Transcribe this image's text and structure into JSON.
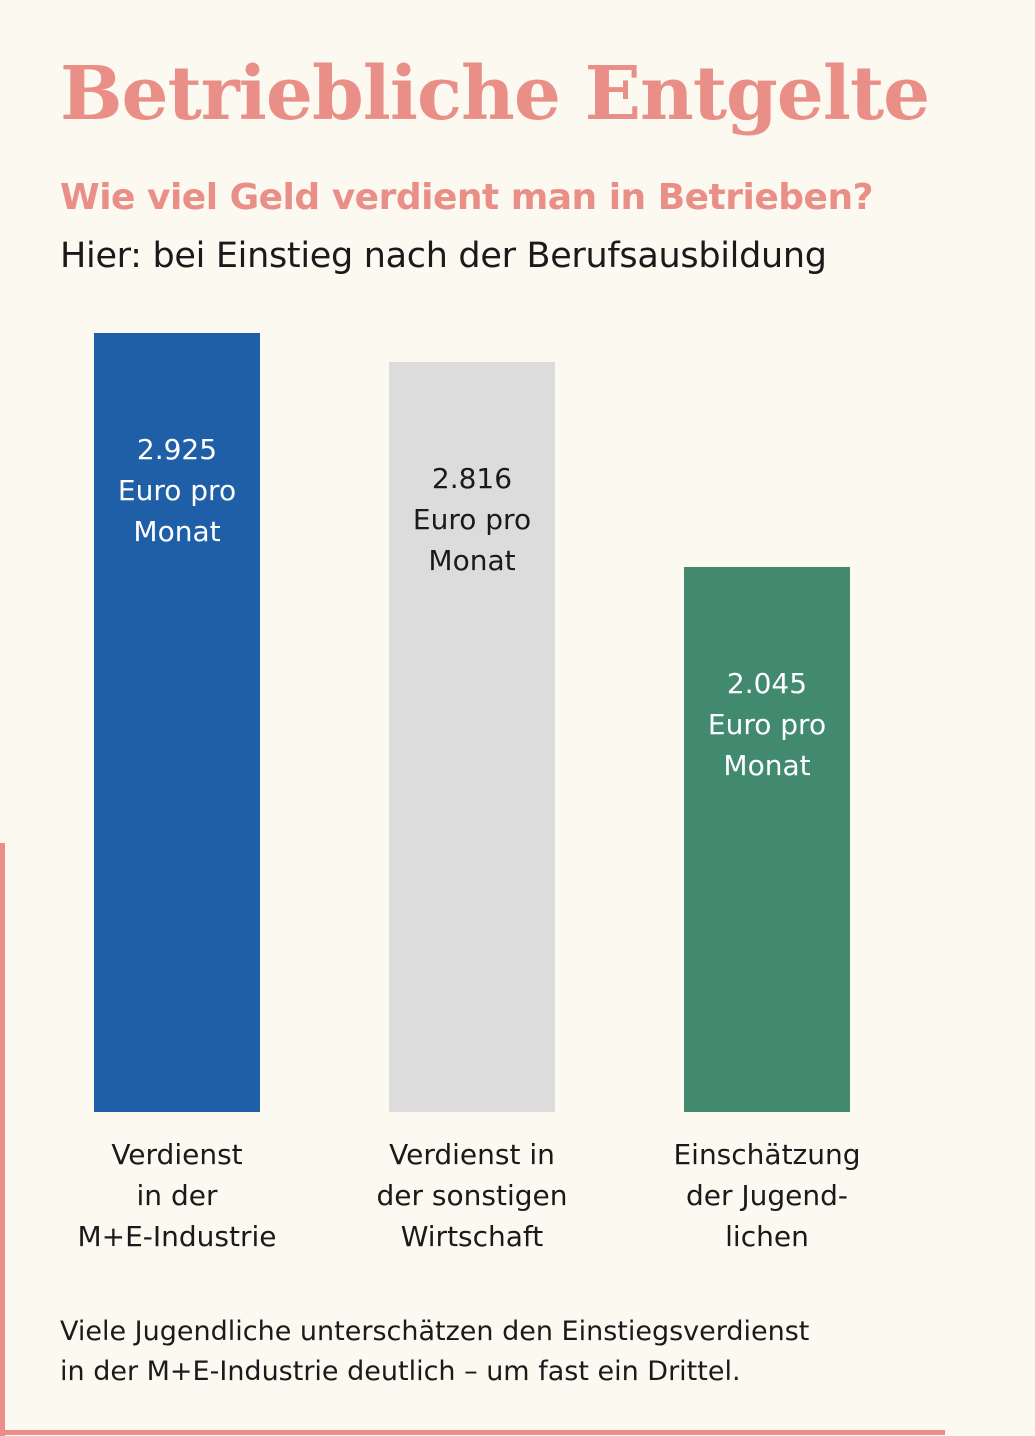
{
  "header": {
    "title": "Betriebliche Entgelte",
    "subtitle": "Wie viel Geld verdient man in Betrieben?",
    "subline": "Hier: bei Einstieg nach der Berufsausbildung"
  },
  "footnote": "Viele Jugendliche unterschätzen den Einstiegsverdienst\nin der M+E-Industrie deutlich – um fast ein Drittel.",
  "colors": {
    "accent": "#ea8e88",
    "background": "#fcf9f1"
  },
  "chart_data": {
    "type": "bar",
    "title": "Betriebliche Entgelte",
    "xlabel": "",
    "ylabel": "",
    "ylim": [
      0,
      2925
    ],
    "categories": [
      "Verdienst\nin der\nM+E-Industrie",
      "Verdienst in\nder sonstigen\nWirtschaft",
      "Einschätzung\nder Jugend-\nlichen"
    ],
    "values": [
      2925,
      2816,
      2045
    ],
    "value_labels": [
      "2.925\nEuro pro\nMonat",
      "2.816\nEuro pro\nMonat",
      "2.045\nEuro pro\nMonat"
    ],
    "bar_colors": [
      "#1f5fa8",
      "#dcdcdc",
      "#418a70"
    ],
    "label_colors": [
      "#ffffff",
      "#1a1a1a",
      "#ffffff"
    ],
    "grid": false,
    "legend": "none"
  }
}
